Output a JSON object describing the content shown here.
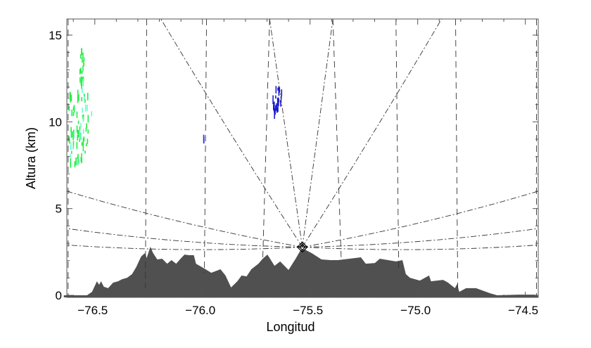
{
  "chart_data": {
    "type": "area",
    "xlabel": "Longitud",
    "ylabel": "Altura (km)",
    "xlim": [
      -76.63,
      -74.44
    ],
    "ylim": [
      -0.12,
      15.93
    ],
    "xticks": [
      -76.5,
      -76.0,
      -75.5,
      -75.0,
      -74.5
    ],
    "xtick_labels": [
      "−76.5",
      "−76.0",
      "−75.5",
      "−75.0",
      "−74.5"
    ],
    "yticks": [
      0,
      5,
      10,
      15
    ],
    "ytick_labels": [
      "0",
      "5",
      "10",
      "15"
    ],
    "x_minor_step": 0.1,
    "y_minor_step": 1,
    "grid": false,
    "terrain": {
      "color": "#505050",
      "lon": [
        -76.644,
        -76.588,
        -76.536,
        -76.513,
        -76.49,
        -76.48,
        -76.471,
        -76.458,
        -76.438,
        -76.415,
        -76.392,
        -76.373,
        -76.35,
        -76.327,
        -76.308,
        -76.285,
        -76.268,
        -76.259,
        -76.242,
        -76.229,
        -76.21,
        -76.187,
        -76.164,
        -76.144,
        -76.122,
        -76.099,
        -76.083,
        -76.063,
        -76.04,
        -76.03,
        -75.991,
        -75.959,
        -75.916,
        -75.893,
        -75.867,
        -75.838,
        -75.818,
        -75.795,
        -75.773,
        -75.74,
        -75.72,
        -75.698,
        -75.665,
        -75.639,
        -75.6,
        -75.567,
        -75.544,
        -75.525,
        -75.492,
        -75.447,
        -75.404,
        -75.371,
        -75.264,
        -75.241,
        -75.199,
        -75.176,
        -75.101,
        -75.071,
        -75.055,
        -75.036,
        -74.99,
        -74.947,
        -74.938,
        -74.882,
        -74.859,
        -74.827,
        -74.817,
        -74.807,
        -74.775,
        -74.729,
        -74.664,
        -74.631,
        -74.533,
        -74.458,
        -74.442
      ],
      "km": [
        0,
        0,
        0,
        0.2,
        0.81,
        0.61,
        0.81,
        0.49,
        0.41,
        0.73,
        0.81,
        0.93,
        1.01,
        1.22,
        1.62,
        2.23,
        2.43,
        2.15,
        2.8,
        2.43,
        2.07,
        2.11,
        1.82,
        2.03,
        1.82,
        2.15,
        2.35,
        2.31,
        2.31,
        1.82,
        1.54,
        1.3,
        1.5,
        1.14,
        0.45,
        0.81,
        1.14,
        1.09,
        1.5,
        1.82,
        2.11,
        2.35,
        1.7,
        1.95,
        1.46,
        2.11,
        2.6,
        2.64,
        2.43,
        2.07,
        2.03,
        2.03,
        2.19,
        1.82,
        1.86,
        2.11,
        1.95,
        2.03,
        1.22,
        1.01,
        0.85,
        1.14,
        0.81,
        0.89,
        0.73,
        0.41,
        0.65,
        0.2,
        0.41,
        0.41,
        0.12,
        0,
        0.04,
        0.04,
        0
      ]
    },
    "radar": {
      "lon": -75.536,
      "km": 2.78,
      "marker": "diamond"
    },
    "beam_rays": [
      {
        "lon": -76.193,
        "km": 15.93
      },
      {
        "lon": -75.688,
        "km": 15.93
      },
      {
        "lon": -75.394,
        "km": 15.93
      },
      {
        "lon": -74.889,
        "km": 15.93
      },
      {
        "lon": -76.63,
        "km": 6.0
      },
      {
        "lon": -76.63,
        "km": 3.85
      },
      {
        "lon": -76.63,
        "km": 2.9
      },
      {
        "lon": -74.44,
        "km": 6.0
      },
      {
        "lon": -74.44,
        "km": 3.85
      },
      {
        "lon": -74.44,
        "km": 2.9
      }
    ],
    "range_lines": [
      {
        "lon_top": -76.624,
        "lon_bottom": -76.624,
        "km_bottom": 0
      },
      {
        "lon_top": -76.259,
        "lon_bottom": -76.265,
        "km_bottom": 0.4
      },
      {
        "lon_top": -75.981,
        "lon_bottom": -75.991,
        "km_bottom": 1.3
      },
      {
        "lon_top": -75.688,
        "lon_bottom": -75.72,
        "km_bottom": 2.0
      },
      {
        "lon_top": -75.394,
        "lon_bottom": -75.355,
        "km_bottom": 2.0
      },
      {
        "lon_top": -75.101,
        "lon_bottom": -75.088,
        "km_bottom": 1.4
      },
      {
        "lon_top": -74.824,
        "lon_bottom": -74.814,
        "km_bottom": 0.4
      },
      {
        "lon_top": -74.448,
        "lon_bottom": -74.448,
        "km_bottom": 0
      }
    ],
    "echoes": [
      {
        "lon": [
          -76.62,
          -76.53
        ],
        "km": [
          7.6,
          12.0
        ],
        "color": "#22ee44",
        "count": 60
      },
      {
        "lon": [
          -76.57,
          -76.55
        ],
        "km": [
          12.2,
          14.5
        ],
        "color": "#22ee44",
        "count": 18
      },
      {
        "lon": [
          -76.56,
          -76.51
        ],
        "km": [
          10.3,
          13.3
        ],
        "color": "#66ffcc",
        "count": 6
      },
      {
        "lon": [
          -76.62,
          -76.55
        ],
        "km": [
          7.4,
          11.0
        ],
        "color": "#66ffcc",
        "count": 12
      },
      {
        "lon": [
          -75.672,
          -75.632
        ],
        "km": [
          10.6,
          12.1
        ],
        "color": "#1a1acc",
        "count": 30
      },
      {
        "lon": [
          -75.996,
          -75.992
        ],
        "km": [
          8.9,
          9.6
        ],
        "color": "#2233dd",
        "count": 2
      }
    ]
  }
}
